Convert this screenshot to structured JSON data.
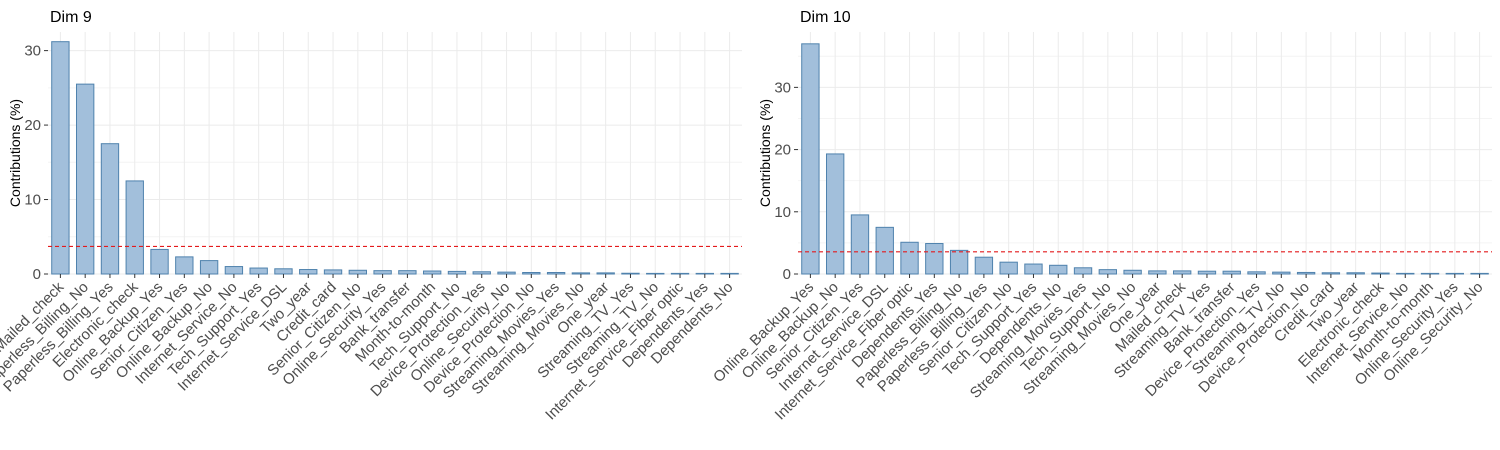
{
  "colors": {
    "bar_fill": "#a2bfdb",
    "bar_stroke": "#4f82ad",
    "reference_line": "#e41a1c"
  },
  "chart_data": [
    {
      "type": "bar",
      "title": "Dim 9",
      "xlabel": "",
      "ylabel": "Contributions (%)",
      "ylim": [
        0,
        32.5
      ],
      "yticks": [
        0,
        10,
        20,
        30
      ],
      "grid": true,
      "reference_line": 3.7,
      "categories": [
        "Mailed_check",
        "Paperless_Billing_No",
        "Paperless_Billing_Yes",
        "Electronic_check",
        "Online_Backup_Yes",
        "Senior_Citizen_Yes",
        "Online_Backup_No",
        "Internet_Service_No",
        "Tech_Support_Yes",
        "Internet_Service_DSL",
        "Two_year",
        "Credit_card",
        "Senior_Citizen_No",
        "Online_Security_Yes",
        "Bank_transfer",
        "Month-to-month",
        "Tech_Support_No",
        "Device_Protection_Yes",
        "Online_Security_No",
        "Device_Protection_No",
        "Streaming_Movies_Yes",
        "Streaming_Movies_No",
        "One_year",
        "Streaming_TV_Yes",
        "Streaming_TV_No",
        "Internet_Service_Fiber optic",
        "Dependents_Yes",
        "Dependents_No"
      ],
      "values": [
        31.2,
        25.5,
        17.5,
        12.5,
        3.3,
        2.3,
        1.8,
        1.0,
        0.8,
        0.7,
        0.6,
        0.55,
        0.5,
        0.45,
        0.45,
        0.4,
        0.35,
        0.3,
        0.25,
        0.2,
        0.2,
        0.15,
        0.15,
        0.1,
        0.08,
        0.06,
        0.05,
        0.04
      ]
    },
    {
      "type": "bar",
      "title": "Dim 10",
      "xlabel": "",
      "ylabel": "Contributions (%)",
      "ylim": [
        0,
        38.9
      ],
      "yticks": [
        0,
        10,
        20,
        30
      ],
      "grid": true,
      "reference_line": 3.57,
      "categories": [
        "Online_Backup_Yes",
        "Online_Backup_No",
        "Senior_Citizen_Yes",
        "Internet_Service_DSL",
        "Internet_Service_Fiber optic",
        "Dependents_Yes",
        "Paperless_Billing_No",
        "Paperless_Billing_Yes",
        "Senior_Citizen_No",
        "Tech_Support_Yes",
        "Dependents_No",
        "Streaming_Movies_Yes",
        "Tech_Support_No",
        "Streaming_Movies_No",
        "One_year",
        "Mailed_check",
        "Streaming_TV_Yes",
        "Bank_transfer",
        "Device_Protection_Yes",
        "Streaming_TV_No",
        "Device_Protection_No",
        "Credit_card",
        "Two_year",
        "Electronic_check",
        "Internet_Service_No",
        "Month-to-month",
        "Online_Security_Yes",
        "Online_Security_No"
      ],
      "values": [
        37.0,
        19.3,
        9.5,
        7.5,
        5.1,
        4.9,
        3.8,
        2.7,
        1.9,
        1.6,
        1.4,
        1.0,
        0.7,
        0.6,
        0.5,
        0.5,
        0.45,
        0.45,
        0.35,
        0.3,
        0.25,
        0.2,
        0.2,
        0.15,
        0.1,
        0.08,
        0.06,
        0.05
      ]
    }
  ]
}
